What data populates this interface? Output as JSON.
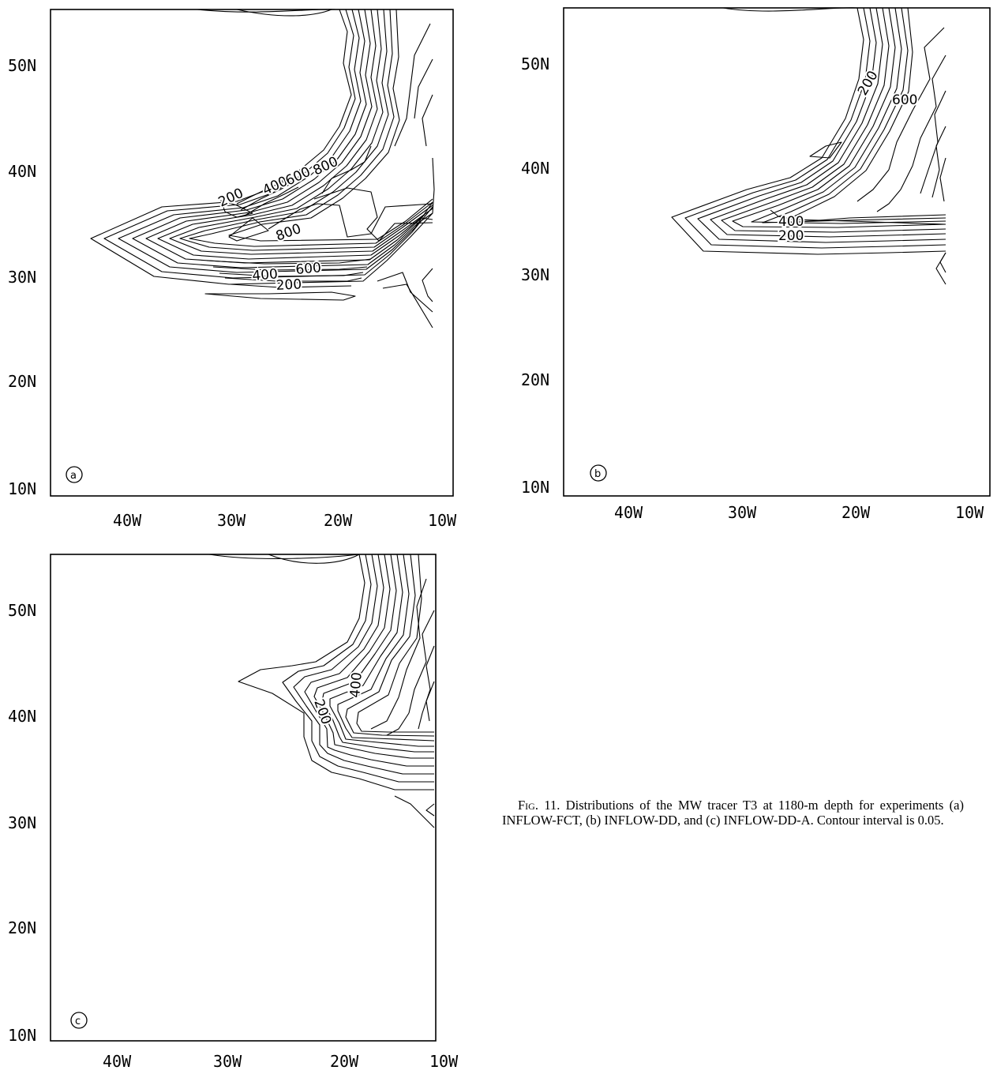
{
  "panels": [
    {
      "id": "a",
      "label": "a",
      "y_ticks": [
        "50N",
        "40N",
        "30N",
        "20N",
        "10N"
      ],
      "x_ticks": [
        "40W",
        "30W",
        "20W",
        "10W"
      ],
      "contour_labels": [
        "200",
        "400",
        "600",
        "800",
        "800",
        "600",
        "400",
        "200"
      ]
    },
    {
      "id": "b",
      "label": "b",
      "y_ticks": [
        "50N",
        "40N",
        "30N",
        "20N",
        "10N"
      ],
      "x_ticks": [
        "40W",
        "30W",
        "20W",
        "10W"
      ],
      "contour_labels": [
        "200",
        "600",
        "400",
        "200"
      ]
    },
    {
      "id": "c",
      "label": "c",
      "y_ticks": [
        "50N",
        "40N",
        "30N",
        "20N",
        "10N"
      ],
      "x_ticks": [
        "40W",
        "30W",
        "20W",
        "10W"
      ],
      "contour_labels": [
        "400",
        "200"
      ]
    }
  ],
  "caption": {
    "prefix": "Fig. 11.",
    "text": " Distributions of the MW tracer T3 at 1180-m depth for experiments (a) INFLOW-FCT, (b) INFLOW-DD, and (c) INFLOW-DD-A. Contour interval is 0.05."
  }
}
